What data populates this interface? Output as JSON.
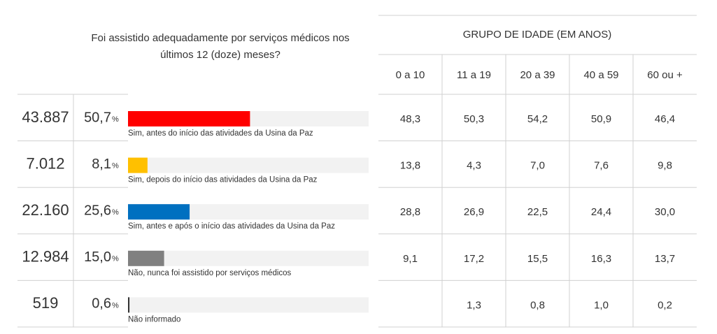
{
  "question": [
    "Foi assistido adequadamente por serviços médicos nos",
    "últimos 12 (doze) meses?"
  ],
  "unit": "%",
  "xlim": [
    0,
    100
  ],
  "rows": [
    {
      "count": "43.887",
      "percent": 50.7,
      "percent_label": "50,7",
      "label": "Sim, antes do início das atividades da Usina da Paz",
      "color": "#ff0000"
    },
    {
      "count": "7.012",
      "percent": 8.1,
      "percent_label": "8,1",
      "label": "Sim, depois do início das atividades da Usina da Paz",
      "color": "#ffc000"
    },
    {
      "count": "22.160",
      "percent": 25.6,
      "percent_label": "25,6",
      "label": "Sim, antes e após o início das atividades da Usina da Paz",
      "color": "#0070c0"
    },
    {
      "count": "12.984",
      "percent": 15.0,
      "percent_label": "15,0",
      "label": "Não, nunca foi assistido por serviços médicos",
      "color": "#808080"
    },
    {
      "count": "519",
      "percent": 0.6,
      "percent_label": "0,6",
      "label": "Não informado",
      "color": "#333333"
    }
  ],
  "age_table": {
    "title": "GRUPO DE IDADE (EM ANOS)",
    "columns": [
      "0 a 10",
      "11 a 19",
      "20 a 39",
      "40 a 59",
      "60 ou +"
    ],
    "rows": [
      [
        "48,3",
        "50,3",
        "54,2",
        "50,9",
        "46,4"
      ],
      [
        "13,8",
        "4,3",
        "7,0",
        "7,6",
        "9,8"
      ],
      [
        "28,8",
        "26,9",
        "22,5",
        "24,4",
        "30,0"
      ],
      [
        "9,1",
        "17,2",
        "15,5",
        "16,3",
        "13,7"
      ],
      [
        null,
        "1,3",
        "0,8",
        "1,0",
        "0,2"
      ]
    ]
  }
}
